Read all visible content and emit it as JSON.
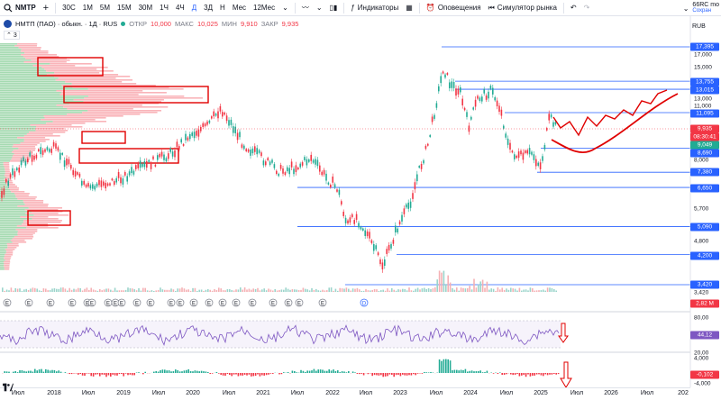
{
  "toolbar": {
    "symbol": "NMTP",
    "intervals": [
      "30С",
      "1М",
      "5М",
      "15М",
      "30М",
      "1Ч",
      "4Ч",
      "Д",
      "3Д",
      "Н",
      "Мес",
      "12Мес"
    ],
    "indicators_label": "Индикаторы",
    "alerts_label": "Оповещения",
    "replay_label": "Симулятор рынка",
    "account_line1": "66RC mo",
    "account_line2": "Сохран"
  },
  "legend": {
    "title": "НМТП (ПАО) · обыкн. · 1Д · RUS",
    "open_label": "ОТКР",
    "open": "10,000",
    "high_label": "МАКС",
    "high": "10,025",
    "low_label": "МИН",
    "low": "9,910",
    "close_label": "ЗАКР",
    "close": "9,935",
    "layer_count": "3"
  },
  "price_scale": {
    "currency": "RUB",
    "ticks": [
      "17,000",
      "15,000",
      "13,000",
      "11,000",
      "8,000",
      "5,700",
      "4,800"
    ],
    "tags": [
      {
        "text": "17,395",
        "color": "#2962ff"
      },
      {
        "text": "13,755",
        "color": "#2962ff"
      },
      {
        "text": "13,015",
        "color": "#2962ff"
      },
      {
        "text": "11,095",
        "color": "#2962ff"
      },
      {
        "text": "9,935",
        "color": "#f23645"
      },
      {
        "text": "08:30:41",
        "color": "#f23645"
      },
      {
        "text": "9,049",
        "color": "#22ab94"
      },
      {
        "text": "8,690",
        "color": "#2962ff"
      },
      {
        "text": "7,380",
        "color": "#2962ff"
      },
      {
        "text": "6,650",
        "color": "#2962ff"
      },
      {
        "text": "5,090",
        "color": "#2962ff"
      },
      {
        "text": "4,200",
        "color": "#2962ff"
      },
      {
        "text": "3,420",
        "color": "#2962ff"
      },
      {
        "text": "2,82 M",
        "color": "#f23645"
      }
    ],
    "volume_tick": "3,420"
  },
  "rsi_scale": {
    "top": "80,00",
    "value": "44,12",
    "value_color": "#7e57c2",
    "bottom": "20,00"
  },
  "macd_scale": {
    "top": "4,000",
    "value": "-0,102",
    "value_color": "#f23645",
    "bottom": "-4,000"
  },
  "time_axis": [
    "Июл",
    "2018",
    "Июл",
    "2019",
    "Июл",
    "2020",
    "Июл",
    "2021",
    "Июл",
    "2022",
    "Июл",
    "2023",
    "Июл",
    "2024",
    "Июл",
    "2025",
    "Июл",
    "2026",
    "Июл",
    "202"
  ],
  "event_marker": "E",
  "dividend_marker": "D",
  "colors": {
    "up": "#22ab94",
    "down": "#f23645",
    "ma": "#3dbfdc",
    "level": "#2962ff",
    "forecast": "#e00000"
  }
}
